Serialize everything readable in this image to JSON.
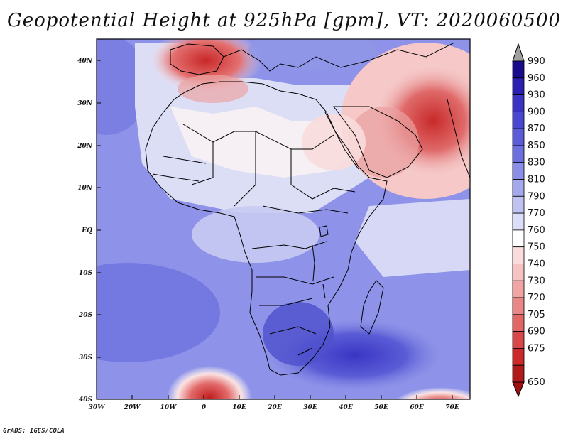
{
  "title": "Geopotential Height at 925hPa [gpm], VT: 2020060500",
  "credit": "GrADS: IGES/COLA",
  "map": {
    "lat_labels": [
      "40N",
      "30N",
      "20N",
      "10N",
      "EQ",
      "10S",
      "20S",
      "30S",
      "40S"
    ],
    "lon_labels": [
      "30W",
      "20W",
      "10W",
      "0",
      "10E",
      "20E",
      "30E",
      "40E",
      "50E",
      "60E",
      "70E"
    ]
  },
  "colorbar": {
    "levels": [
      "990",
      "960",
      "930",
      "900",
      "870",
      "850",
      "830",
      "810",
      "790",
      "770",
      "760",
      "750",
      "740",
      "730",
      "720",
      "705",
      "690",
      "675",
      "650"
    ],
    "colors": [
      "#1a0a8c",
      "#2a1fb0",
      "#3a33c4",
      "#4a48d0",
      "#5a5cd8",
      "#6c70de",
      "#8a8ee6",
      "#a4a8ec",
      "#c0c3f2",
      "#dcdef8",
      "#ffffff",
      "#fbdcdc",
      "#f6c2c2",
      "#f0a4a4",
      "#e98686",
      "#e26666",
      "#d94848",
      "#cc2a2a",
      "#b01a1a"
    ],
    "top_arrow_color": "#a0a0a0",
    "bottom_arrow_color": "#a01010"
  }
}
